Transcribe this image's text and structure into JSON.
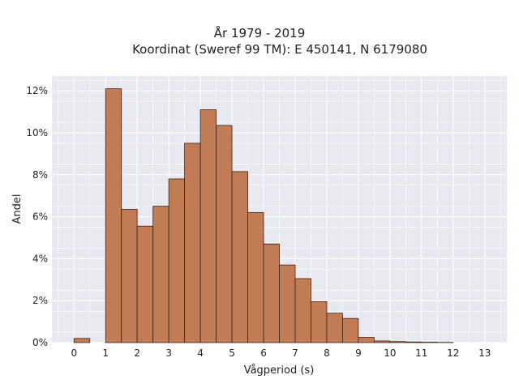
{
  "chart_data": {
    "type": "bar",
    "title": "År 1979 - 2019",
    "subtitle": "Koordinat (Sweref 99 TM): E 450141, N 6179080",
    "xlabel": "Vågperiod (s)",
    "ylabel": "Andel",
    "xlim": [
      -0.7,
      13.7
    ],
    "ylim": [
      0,
      12.7
    ],
    "grid": true,
    "bin_width": 0.5,
    "x_ticks": [
      0,
      1,
      2,
      3,
      4,
      5,
      6,
      7,
      8,
      9,
      10,
      11,
      12,
      13
    ],
    "x_tick_labels": [
      "0",
      "1",
      "2",
      "3",
      "4",
      "5",
      "6",
      "7",
      "8",
      "9",
      "10",
      "11",
      "12",
      "13"
    ],
    "y_ticks": [
      0,
      2,
      4,
      6,
      8,
      10,
      12
    ],
    "y_tick_labels": [
      "0%",
      "2%",
      "4%",
      "6%",
      "8%",
      "10%",
      "12%"
    ],
    "bins": [
      {
        "x": 0.0,
        "value": 0.2
      },
      {
        "x": 1.0,
        "value": 12.1
      },
      {
        "x": 1.5,
        "value": 6.35
      },
      {
        "x": 2.0,
        "value": 5.55
      },
      {
        "x": 2.5,
        "value": 6.5
      },
      {
        "x": 3.0,
        "value": 7.8
      },
      {
        "x": 3.5,
        "value": 9.5
      },
      {
        "x": 4.0,
        "value": 11.1
      },
      {
        "x": 4.5,
        "value": 10.35
      },
      {
        "x": 5.0,
        "value": 8.15
      },
      {
        "x": 5.5,
        "value": 6.2
      },
      {
        "x": 6.0,
        "value": 4.7
      },
      {
        "x": 6.5,
        "value": 3.7
      },
      {
        "x": 7.0,
        "value": 3.05
      },
      {
        "x": 7.5,
        "value": 1.95
      },
      {
        "x": 8.0,
        "value": 1.4
      },
      {
        "x": 8.5,
        "value": 1.15
      },
      {
        "x": 9.0,
        "value": 0.25
      },
      {
        "x": 9.5,
        "value": 0.08
      },
      {
        "x": 10.0,
        "value": 0.05
      },
      {
        "x": 10.5,
        "value": 0.03
      },
      {
        "x": 11.0,
        "value": 0.02
      },
      {
        "x": 11.5,
        "value": 0.01
      }
    ],
    "bar_color": "#c17b55",
    "bar_edge_color": "#3a2418",
    "plot_background": "#e8e8f1",
    "grid_color": "#ffffff"
  }
}
